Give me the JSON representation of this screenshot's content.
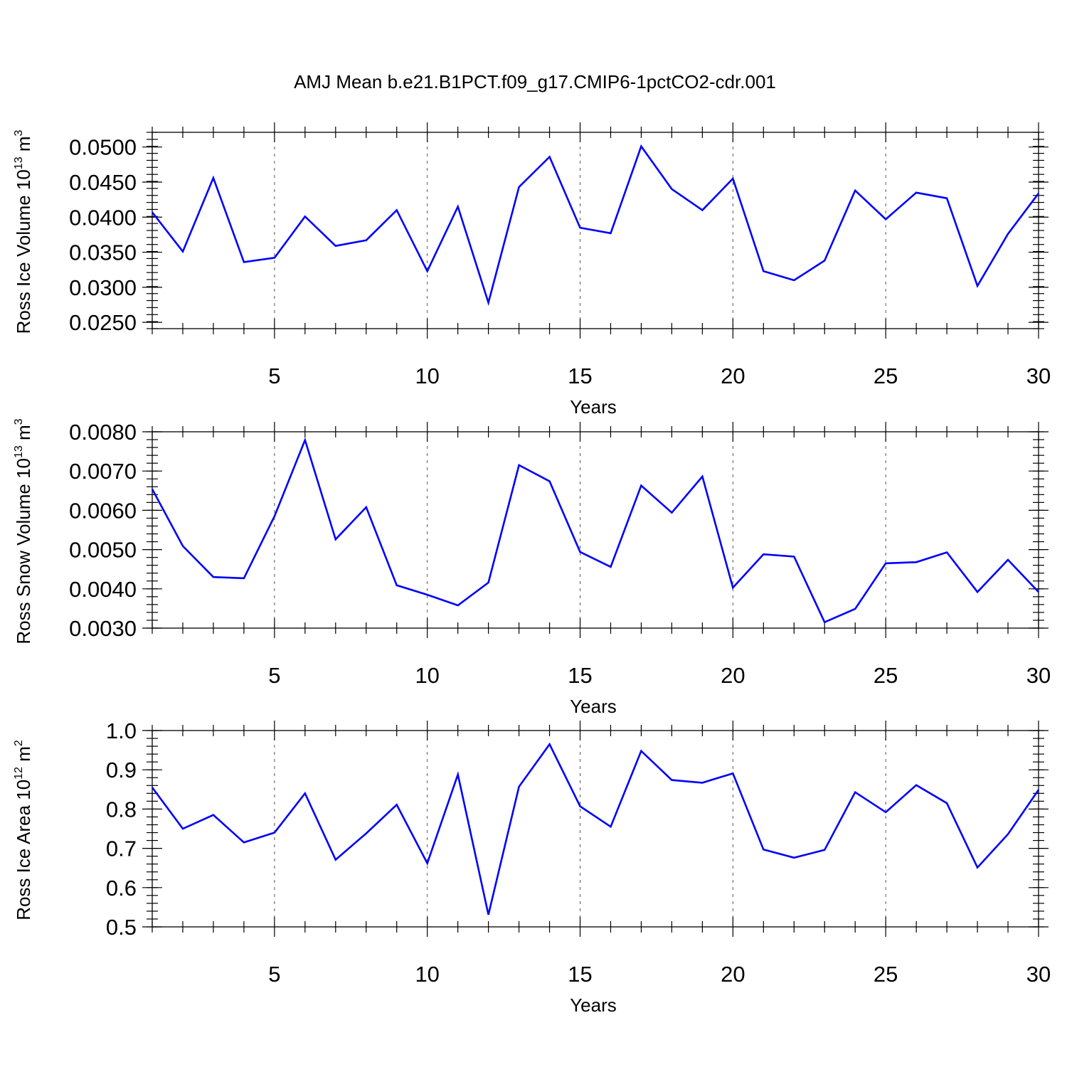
{
  "title": "AMJ Mean b.e21.B1PCT.f09_g17.CMIP6-1pctCO2-cdr.001",
  "colors": {
    "series": "#0000ff",
    "axis": "#000000",
    "grid": "#555555"
  },
  "chart_data": [
    {
      "type": "line",
      "xlabel": "Years",
      "ylabel": {
        "text": "Ross Ice Volume 10",
        "exponent": "13",
        "unit": " m",
        "unit_exponent": "3"
      },
      "xlim": [
        1,
        30
      ],
      "ylim": [
        0.0241,
        0.0521
      ],
      "x_ticks": [
        "5",
        "10",
        "15",
        "20",
        "25",
        "30"
      ],
      "y_ticks": [
        "0.0250",
        "0.0300",
        "0.0350",
        "0.0400",
        "0.0450",
        "0.0500"
      ],
      "y_tick_values": [
        0.025,
        0.03,
        0.035,
        0.04,
        0.045,
        0.05
      ],
      "y_minor_step": 0.001,
      "grid": "dashed vertical at x=5,10,15,20,25",
      "x": [
        1,
        2,
        3,
        4,
        5,
        6,
        7,
        8,
        9,
        10,
        11,
        12,
        13,
        14,
        15,
        16,
        17,
        18,
        19,
        20,
        21,
        22,
        23,
        24,
        25,
        26,
        27,
        28,
        29,
        30
      ],
      "values": [
        0.0407,
        0.0351,
        0.0456,
        0.0336,
        0.0342,
        0.0401,
        0.0359,
        0.0367,
        0.041,
        0.0323,
        0.0415,
        0.0278,
        0.0443,
        0.0486,
        0.0385,
        0.0377,
        0.0501,
        0.044,
        0.041,
        0.0455,
        0.0323,
        0.031,
        0.0338,
        0.0438,
        0.0397,
        0.0435,
        0.0427,
        0.0302,
        0.0376,
        0.0434
      ]
    },
    {
      "type": "line",
      "xlabel": "Years",
      "ylabel": {
        "text": "Ross Snow Volume 10",
        "exponent": "13",
        "unit": " m",
        "unit_exponent": "3"
      },
      "xlim": [
        1,
        30
      ],
      "ylim": [
        0.003,
        0.008
      ],
      "x_ticks": [
        "5",
        "10",
        "15",
        "20",
        "25",
        "30"
      ],
      "y_ticks": [
        "0.0030",
        "0.0040",
        "0.0050",
        "0.0060",
        "0.0070",
        "0.0080"
      ],
      "y_tick_values": [
        0.003,
        0.004,
        0.005,
        0.006,
        0.007,
        0.008
      ],
      "y_minor_step": 0.0002,
      "grid": "dashed vertical at x=5,10,15,20,25",
      "x": [
        1,
        2,
        3,
        4,
        5,
        6,
        7,
        8,
        9,
        10,
        11,
        12,
        13,
        14,
        15,
        16,
        17,
        18,
        19,
        20,
        21,
        22,
        23,
        24,
        25,
        26,
        27,
        28,
        29,
        30
      ],
      "values": [
        0.00654,
        0.00509,
        0.0043,
        0.00427,
        0.00585,
        0.00779,
        0.00526,
        0.00608,
        0.00409,
        0.00385,
        0.00358,
        0.00416,
        0.00715,
        0.00674,
        0.00494,
        0.00456,
        0.00663,
        0.00594,
        0.00686,
        0.00403,
        0.00488,
        0.00482,
        0.00315,
        0.00349,
        0.00465,
        0.00468,
        0.00493,
        0.00392,
        0.00474,
        0.00392
      ]
    },
    {
      "type": "line",
      "xlabel": "Years",
      "ylabel": {
        "text": "Ross Ice Area 10",
        "exponent": "12",
        "unit": " m",
        "unit_exponent": "2"
      },
      "xlim": [
        1,
        30
      ],
      "ylim": [
        0.5,
        1.0
      ],
      "x_ticks": [
        "5",
        "10",
        "15",
        "20",
        "25",
        "30"
      ],
      "y_ticks": [
        "0.5",
        "0.6",
        "0.7",
        "0.8",
        "0.9",
        "1.0"
      ],
      "y_tick_values": [
        0.5,
        0.6,
        0.7,
        0.8,
        0.9,
        1.0
      ],
      "y_minor_step": 0.02,
      "grid": "dashed vertical at x=5,10,15,20,25",
      "x": [
        1,
        2,
        3,
        4,
        5,
        6,
        7,
        8,
        9,
        10,
        11,
        12,
        13,
        14,
        15,
        16,
        17,
        18,
        19,
        20,
        21,
        22,
        23,
        24,
        25,
        26,
        27,
        28,
        29,
        30
      ],
      "values": [
        0.855,
        0.75,
        0.785,
        0.715,
        0.74,
        0.84,
        0.671,
        0.738,
        0.811,
        0.662,
        0.888,
        0.531,
        0.857,
        0.965,
        0.807,
        0.755,
        0.948,
        0.874,
        0.867,
        0.891,
        0.697,
        0.676,
        0.696,
        0.843,
        0.792,
        0.861,
        0.815,
        0.651,
        0.736,
        0.849
      ]
    }
  ]
}
